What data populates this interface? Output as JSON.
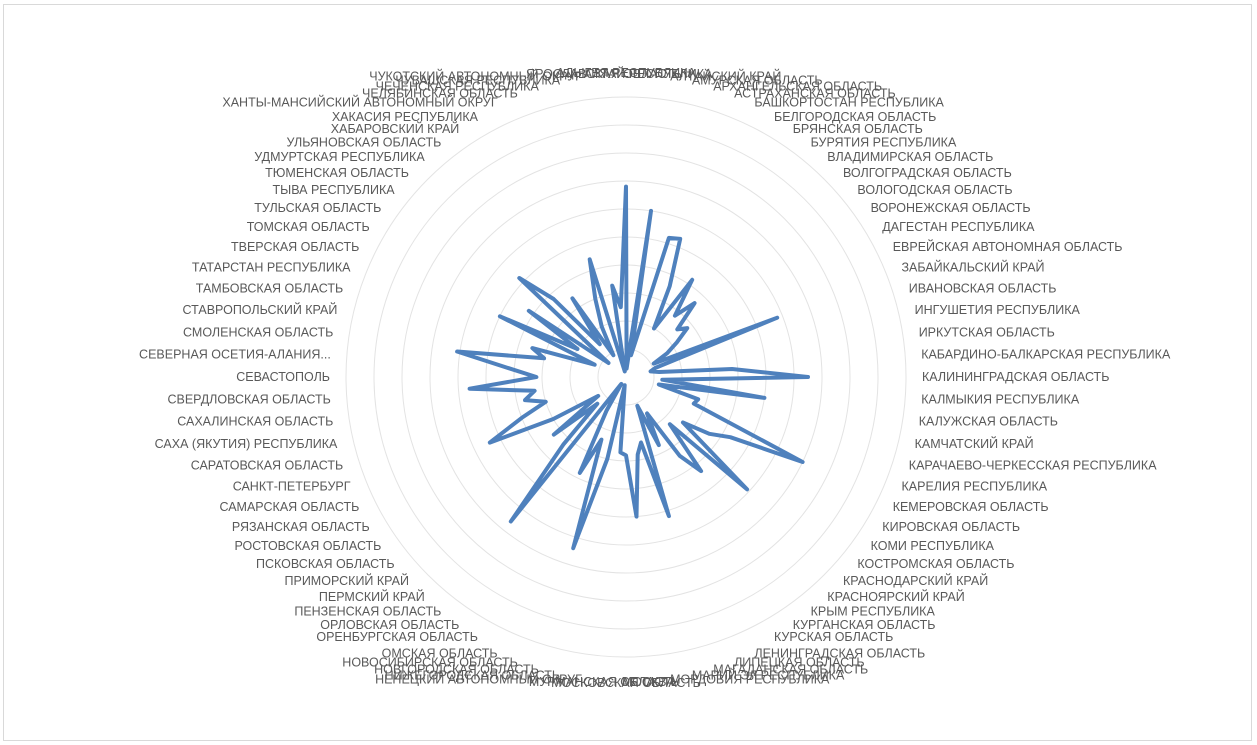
{
  "chart_data": {
    "type": "radar",
    "title": "",
    "legend": "none",
    "grid": true,
    "rlim": [
      0,
      10
    ],
    "series": [
      {
        "color": "#4f81bd",
        "values": [
          6.8,
          0.3,
          6.0,
          0.8,
          5.2,
          5.3,
          3.6,
          2.0,
          4.2,
          2.8,
          3.6,
          2.5,
          2.8,
          2.2,
          1.7,
          1.1,
          5.8,
          1.1,
          0.9,
          1.2,
          3.8,
          6.5,
          1.3,
          5.0,
          1.2,
          2.7,
          2.6,
          7.0,
          4.3,
          3.6,
          2.6,
          5.9,
          2.3,
          4.3,
          3.4,
          1.5,
          2.7,
          1.1,
          5.2,
          2.4,
          2.8,
          5.0,
          2.8,
          2.7,
          0.3,
          3.0,
          6.4,
          2.4,
          3.8,
          1.4,
          0.3,
          6.6,
          3.3,
          1.4,
          3.3,
          1.2,
          3.0,
          5.4,
          4.0,
          3.0,
          3.7,
          3.3,
          5.6,
          3.2,
          4.2,
          6.1,
          3.0,
          3.5,
          1.2,
          5.0,
          2.0,
          4.2,
          0.8,
          5.2,
          3.8,
          1.5,
          3.4,
          0.9,
          2.0,
          3.0,
          4.4,
          0.2,
          3.3,
          2.5
        ]
      }
    ],
    "categories": [
      "АДЫГЕЯ РЕСПУБЛИКА",
      "АЛТАЙ РЕСПУБЛИКА",
      "АЛТАЙСКИЙ КРАЙ",
      "АМУРСКАЯ ОБЛАСТЬ",
      "АРХАНГЕЛЬСКАЯ ОБЛАСТЬ",
      "АСТРАХАНСКАЯ ОБЛАСТЬ",
      "БАШКОРТОСТАН РЕСПУБЛИКА",
      "БЕЛГОРОДСКАЯ ОБЛАСТЬ",
      "БРЯНСКАЯ ОБЛАСТЬ",
      "БУРЯТИЯ РЕСПУБЛИКА",
      "ВЛАДИМИРСКАЯ ОБЛАСТЬ",
      "ВОЛГОГРАДСКАЯ ОБЛАСТЬ",
      "ВОЛОГОДСКАЯ ОБЛАСТЬ",
      "ВОРОНЕЖСКАЯ ОБЛАСТЬ",
      "ДАГЕСТАН РЕСПУБЛИКА",
      "ЕВРЕЙСКАЯ АВТОНОМНАЯ ОБЛАСТЬ",
      "ЗАБАЙКАЛЬСКИЙ КРАЙ",
      "ИВАНОВСКАЯ ОБЛАСТЬ",
      "ИНГУШЕТИЯ РЕСПУБЛИКА",
      "ИРКУТСКАЯ ОБЛАСТЬ",
      "КАБАРДИНО-БАЛКАРСКАЯ РЕСПУБЛИКА",
      "КАЛИНИНГРАДСКАЯ ОБЛАСТЬ",
      "КАЛМЫКИЯ РЕСПУБЛИКА",
      "КАЛУЖСКАЯ ОБЛАСТЬ",
      "КАМЧАТСКИЙ КРАЙ",
      "КАРАЧАЕВО-ЧЕРКЕССКАЯ РЕСПУБЛИКА",
      "КАРЕЛИЯ РЕСПУБЛИКА",
      "КЕМЕРОВСКАЯ ОБЛАСТЬ",
      "КИРОВСКАЯ ОБЛАСТЬ",
      "КОМИ РЕСПУБЛИКА",
      "КОСТРОМСКАЯ ОБЛАСТЬ",
      "КРАСНОДАРСКИЙ КРАЙ",
      "КРАСНОЯРСКИЙ КРАЙ",
      "КРЫМ РЕСПУБЛИКА",
      "КУРГАНСКАЯ ОБЛАСТЬ",
      "КУРСКАЯ ОБЛАСТЬ",
      "ЛЕНИНГРАДСКАЯ ОБЛАСТЬ",
      "ЛИПЕЦКАЯ ОБЛАСТЬ",
      "МАГАДАНСКАЯ ОБЛАСТЬ",
      "МАРИЙ ЭЛ РЕСПУБЛИКА",
      "МОРДОВИЯ РЕСПУБЛИКА",
      "МОСКВА",
      "МОСКОВСКАЯ ОБЛАСТЬ",
      "МУРМАНСКАЯ ОБЛАСТЬ",
      "НЕНЕЦКИЙ АВТОНОМНЫЙ ОКРУГ",
      "НИЖЕГОРОДСКАЯ ОБЛАСТЬ",
      "НОВГОРОДСКАЯ ОБЛАСТЬ",
      "НОВОСИБИРСКАЯ ОБЛАСТЬ",
      "ОМСКАЯ ОБЛАСТЬ",
      "ОРЕНБУРГСКАЯ ОБЛАСТЬ",
      "ОРЛОВСКАЯ ОБЛАСТЬ",
      "ПЕНЗЕНСКАЯ ОБЛАСТЬ",
      "ПЕРМСКИЙ КРАЙ",
      "ПРИМОРСКИЙ КРАЙ",
      "ПСКОВСКАЯ ОБЛАСТЬ",
      "РОСТОВСКАЯ ОБЛАСТЬ",
      "РЯЗАНСКАЯ ОБЛАСТЬ",
      "САМАРСКАЯ ОБЛАСТЬ",
      "САНКТ-ПЕТЕРБУРГ",
      "САРАТОВСКАЯ ОБЛАСТЬ",
      "САХА (ЯКУТИЯ) РЕСПУБЛИКА",
      "САХАЛИНСКАЯ ОБЛАСТЬ",
      "СВЕРДЛОВСКАЯ ОБЛАСТЬ",
      "СЕВАСТОПОЛЬ",
      "СЕВЕРНАЯ ОСЕТИЯ-АЛАНИЯ...",
      "СМОЛЕНСКАЯ ОБЛАСТЬ",
      "СТАВРОПОЛЬСКИЙ КРАЙ",
      "ТАМБОВСКАЯ ОБЛАСТЬ",
      "ТАТАРСТАН РЕСПУБЛИКА",
      "ТВЕРСКАЯ ОБЛАСТЬ",
      "ТОМСКАЯ ОБЛАСТЬ",
      "ТУЛЬСКАЯ ОБЛАСТЬ",
      "ТЫВА РЕСПУБЛИКА",
      "ТЮМЕНСКАЯ ОБЛАСТЬ",
      "УДМУРТСКАЯ РЕСПУБЛИКА",
      "УЛЬЯНОВСКАЯ ОБЛАСТЬ",
      "ХАБАРОВСКИЙ КРАЙ",
      "ХАКАСИЯ РЕСПУБЛИКА",
      "ХАНТЫ-МАНСИЙСКИЙ АВТОНОМНЫЙ ОКРУГ",
      "ЧЕЛЯБИНСКАЯ ОБЛАСТЬ",
      "ЧЕЧЕНСКАЯ РЕСПУБЛИКА",
      "ЧУВАШСКАЯ РЕСПУБЛИКА",
      "ЧУКОТСКИЙ АВТОНОМНЫЙ ОКРУГ",
      "ЯРОСЛАВСКАЯ ОБЛАСТЬ"
    ]
  }
}
